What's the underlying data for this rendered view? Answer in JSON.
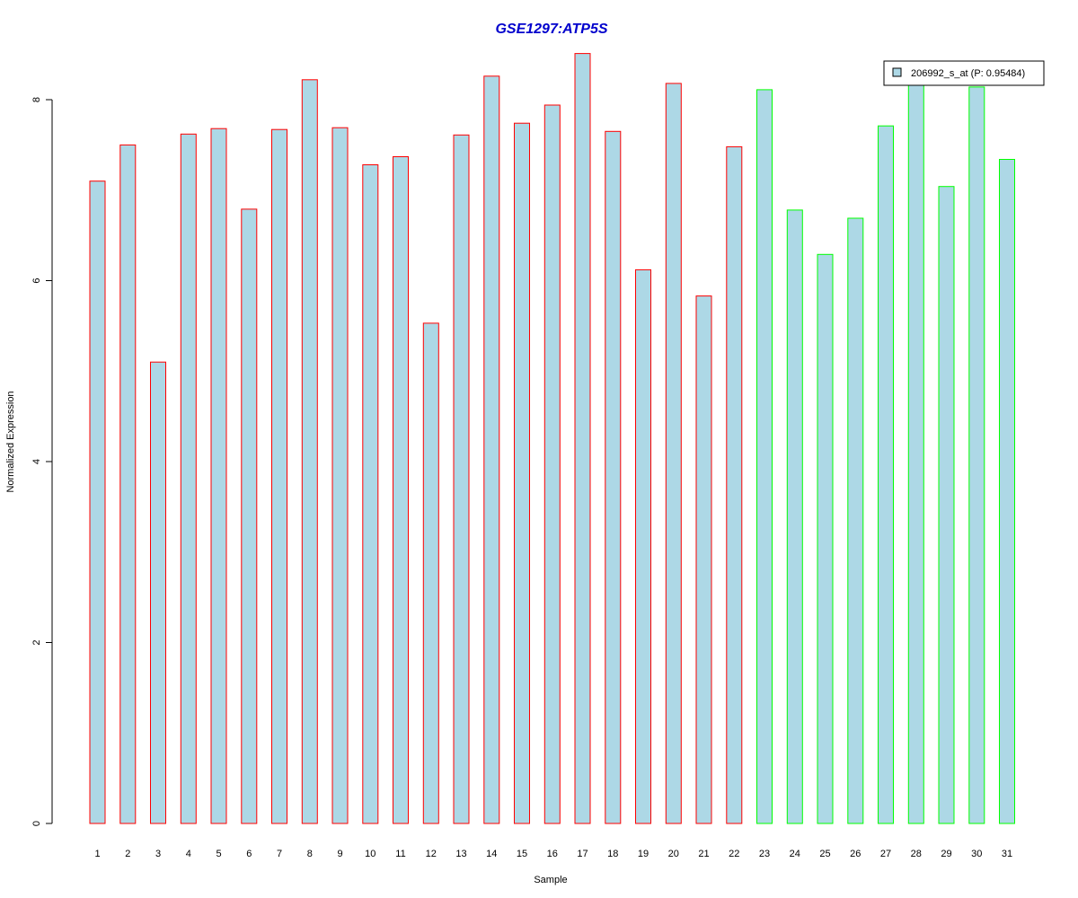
{
  "chart_data": {
    "type": "bar",
    "title": "GSE1297:ATP5S",
    "xlabel": "Sample",
    "ylabel": "Normalized Expression",
    "categories": [
      "1",
      "2",
      "3",
      "4",
      "5",
      "6",
      "7",
      "8",
      "9",
      "10",
      "11",
      "12",
      "13",
      "14",
      "15",
      "16",
      "17",
      "18",
      "19",
      "20",
      "21",
      "22",
      "23",
      "24",
      "25",
      "26",
      "27",
      "28",
      "29",
      "30",
      "31"
    ],
    "values": [
      7.1,
      7.5,
      5.1,
      7.62,
      7.68,
      6.79,
      7.67,
      8.22,
      7.69,
      7.28,
      7.37,
      5.53,
      7.61,
      8.26,
      7.74,
      7.94,
      8.51,
      7.65,
      6.12,
      8.18,
      5.83,
      7.48,
      8.11,
      6.78,
      6.29,
      6.69,
      7.71,
      8.18,
      7.04,
      8.14,
      7.34
    ],
    "groups": [
      "red",
      "red",
      "red",
      "red",
      "red",
      "red",
      "red",
      "red",
      "red",
      "red",
      "red",
      "red",
      "red",
      "red",
      "red",
      "red",
      "red",
      "red",
      "red",
      "red",
      "red",
      "red",
      "green",
      "green",
      "green",
      "green",
      "green",
      "green",
      "green",
      "green",
      "green"
    ],
    "y_ticks": [
      "0",
      "2",
      "4",
      "6",
      "8"
    ],
    "ylim": [
      0,
      8.5
    ],
    "grid": false,
    "legend": {
      "label": "206992_s_at (P: 0.95484)",
      "placement": "top-right"
    },
    "colors": {
      "bar_fill": "#add8e6",
      "group_red_border": "#ff0000",
      "group_green_border": "#00ff00",
      "title": "#0000cd",
      "axis": "#000000"
    }
  }
}
